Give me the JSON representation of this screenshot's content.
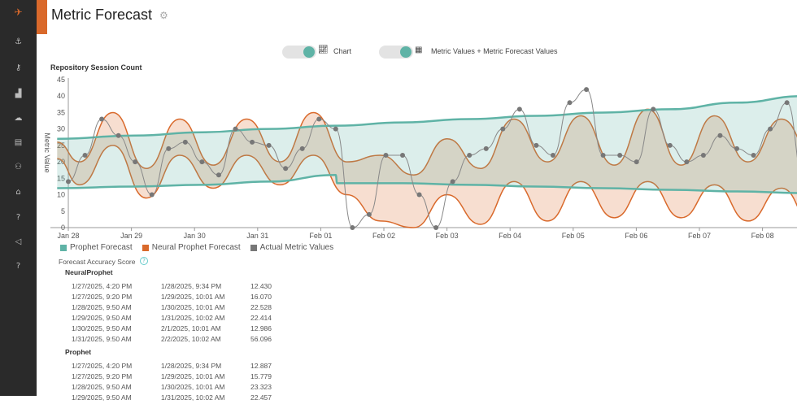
{
  "page": {
    "title": "Metric Forecast"
  },
  "toggles": [
    {
      "label": "Chart",
      "on": true,
      "icon": "line-chart-icon"
    },
    {
      "label": "Metric Values + Metric Forecast Values",
      "on": true,
      "icon": "grid-icon"
    }
  ],
  "sidebar": {
    "icons": [
      "logo-icon",
      "anchor-icon",
      "key-icon",
      "bar-chart-icon",
      "cloud-icon",
      "document-icon",
      "user-icon",
      "home-icon",
      "help-icon",
      "megaphone-icon",
      "help-icon"
    ]
  },
  "colors": {
    "prophet": "#5fb3a6",
    "neural": "#d9692b",
    "actual": "#777777",
    "accent": "#d9692b"
  },
  "chart_data": {
    "type": "line",
    "title": "Repository Session Count",
    "ylabel": "Metric Value",
    "ylim": [
      0,
      45
    ],
    "yticks": [
      0,
      5,
      10,
      15,
      20,
      25,
      30,
      35,
      40,
      45
    ],
    "xticks": [
      "Jan 28",
      "Jan 29",
      "Jan 30",
      "Jan 31",
      "Feb 01",
      "Feb 02",
      "Feb 03",
      "Feb 04",
      "Feb 05",
      "Feb 06",
      "Feb 07",
      "Feb 08"
    ],
    "grid": false,
    "legend_position": "bottom-left",
    "series": [
      {
        "name": "Prophet Forecast",
        "type": "band",
        "x": [
          "2025-01-27T20:00",
          "2025-01-29T00:00",
          "2025-01-30T00:00",
          "2025-01-31T00:00",
          "2025-02-01T00:00",
          "2025-02-01T00:30",
          "2025-02-02T00:00",
          "2025-02-03T00:00",
          "2025-02-04T00:00",
          "2025-02-05T00:00",
          "2025-02-06T00:00",
          "2025-02-07T00:00",
          "2025-02-08T00:00",
          "2025-02-08T14:00"
        ],
        "upper": [
          27,
          28,
          29,
          30,
          31,
          31,
          32,
          33,
          34,
          35,
          36,
          38,
          40,
          41
        ],
        "lower": [
          12,
          12.5,
          13,
          14,
          16,
          13.5,
          13.5,
          13,
          12.5,
          12,
          11.5,
          11,
          10.5,
          10
        ]
      },
      {
        "name": "Neural Prophet Forecast",
        "type": "band",
        "x": [
          "2025-01-27T20:00",
          "2025-01-28T04:00",
          "2025-01-28T16:00",
          "2025-01-29T04:00",
          "2025-01-29T16:00",
          "2025-01-30T04:00",
          "2025-01-30T16:00",
          "2025-01-31T04:00",
          "2025-01-31T16:00",
          "2025-02-01T04:00",
          "2025-02-01T16:00",
          "2025-02-02T04:00",
          "2025-02-02T16:00",
          "2025-02-03T04:00",
          "2025-02-03T16:00",
          "2025-02-04T04:00",
          "2025-02-04T16:00",
          "2025-02-05T04:00",
          "2025-02-05T16:00",
          "2025-02-06T04:00",
          "2025-02-06T16:00",
          "2025-02-07T04:00",
          "2025-02-07T16:00",
          "2025-02-08T04:00",
          "2025-02-08T14:00"
        ],
        "upper": [
          26,
          20,
          35,
          18,
          33,
          19,
          33,
          20,
          35,
          20,
          22,
          16,
          27,
          18,
          33,
          20,
          34,
          19,
          36,
          19,
          34,
          20,
          33,
          21,
          19
        ],
        "lower": [
          21,
          13,
          25,
          9,
          22,
          12,
          22,
          13,
          22,
          10,
          2,
          0,
          10,
          1,
          14,
          2,
          14,
          3,
          14,
          3,
          13,
          2,
          12,
          0,
          0
        ]
      },
      {
        "name": "Actual Metric Values",
        "type": "points",
        "start": "2025-01-28T00:00",
        "step_hours": 6,
        "values": [
          14,
          22,
          33,
          28,
          20,
          10,
          24,
          26,
          20,
          16,
          30,
          26,
          25,
          18,
          24,
          33,
          30,
          0,
          4,
          22,
          22,
          10,
          0,
          14,
          22,
          24,
          30,
          36,
          25,
          22,
          38,
          42,
          22,
          22,
          20,
          36,
          25,
          20,
          22,
          28,
          24,
          22,
          30,
          38,
          15,
          20,
          20
        ]
      }
    ]
  },
  "legend": [
    "Prophet Forecast",
    "Neural Prophet Forecast",
    "Actual Metric Values"
  ],
  "accuracy": {
    "title": "Forecast Accuracy Score",
    "groups": [
      {
        "name": "NeuralProphet",
        "rows": [
          [
            "1/27/2025, 4:20 PM",
            "1/28/2025, 9:34 PM",
            "12.430"
          ],
          [
            "1/27/2025, 9:20 PM",
            "1/29/2025, 10:01 AM",
            "16.070"
          ],
          [
            "1/28/2025, 9:50 AM",
            "1/30/2025, 10:01 AM",
            "22.528"
          ],
          [
            "1/29/2025, 9:50 AM",
            "1/31/2025, 10:02 AM",
            "22.414"
          ],
          [
            "1/30/2025, 9:50 AM",
            "2/1/2025, 10:01 AM",
            "12.986"
          ],
          [
            "1/31/2025, 9:50 AM",
            "2/2/2025, 10:02 AM",
            "56.096"
          ]
        ]
      },
      {
        "name": "Prophet",
        "rows": [
          [
            "1/27/2025, 4:20 PM",
            "1/28/2025, 9:34 PM",
            "12.887"
          ],
          [
            "1/27/2025, 9:20 PM",
            "1/29/2025, 10:01 AM",
            "15.779"
          ],
          [
            "1/28/2025, 9:50 AM",
            "1/30/2025, 10:01 AM",
            "23.323"
          ],
          [
            "1/29/2025, 9:50 AM",
            "1/31/2025, 10:02 AM",
            "22.457"
          ]
        ]
      }
    ]
  }
}
